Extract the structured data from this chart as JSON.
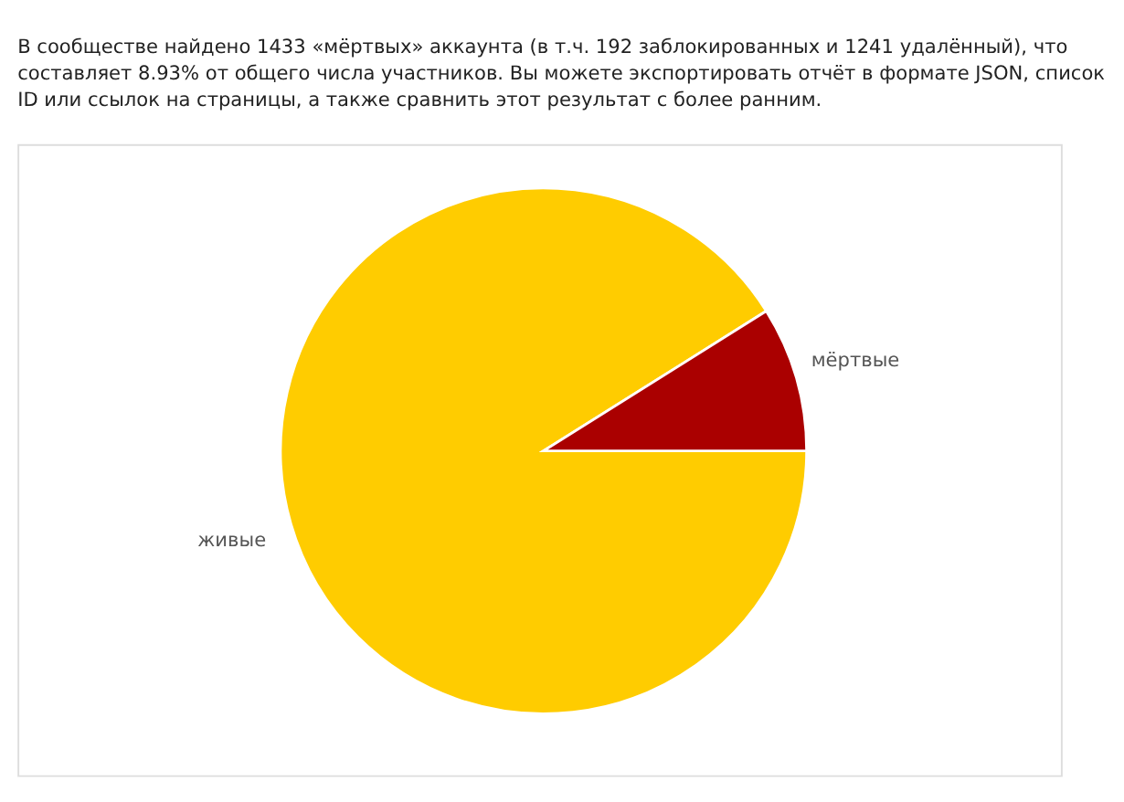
{
  "chart_data": {
    "type": "pie",
    "title": "В сообществе найдено 1433 «мёртвых» аккаунта (в т.ч. 192 заблокированных и 1241 удалённый), что составляет 8.93% от общего числа участников. Вы можете экспортировать отчёт в формате JSON, список ID или ссылок на страницы, а также сравнить этот результат с более ранним.",
    "categories": [
      "живые",
      "мёртвые"
    ],
    "values": [
      91.07,
      8.93
    ],
    "colors": [
      "#ffcc00",
      "#aa0000"
    ],
    "legend": false
  }
}
